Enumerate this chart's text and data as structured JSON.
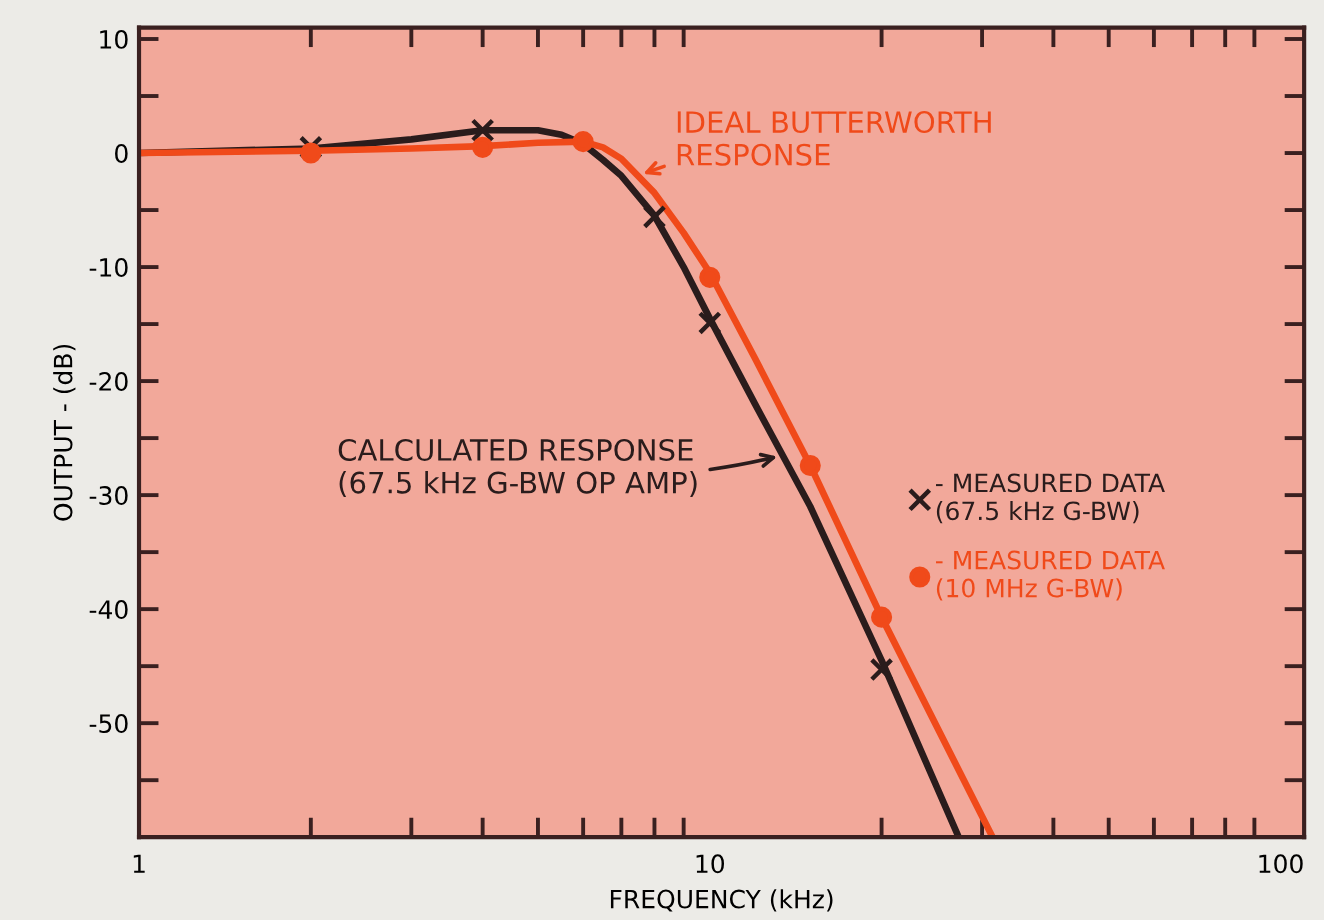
{
  "chart_data": {
    "type": "line",
    "xlabel": "FREQUENCY (kHz)",
    "ylabel": "OUTPUT - (dB)",
    "log": "x",
    "xlim": [
      1,
      110
    ],
    "xticks": [
      1,
      10,
      100
    ],
    "ylim": [
      -60,
      11
    ],
    "yticks": [
      {
        "value": -55,
        "label": null
      },
      -50,
      {
        "value": -45,
        "label": null
      },
      -40,
      {
        "value": -35,
        "label": null
      },
      -30,
      {
        "value": -25,
        "label": null
      },
      -20,
      {
        "value": -15,
        "label": null
      },
      -10,
      {
        "value": -5,
        "label": null
      },
      0,
      {
        "value": 5,
        "label": null
      },
      10
    ],
    "grid": false,
    "legend": "right",
    "series": [
      {
        "name": "CALCULATED RESPONSE\n(67.5 kHz G-BW OP AMP)",
        "color": "#2a1c1c",
        "marker": "none",
        "x": [
          1,
          2,
          3,
          4,
          5,
          5.5,
          6,
          6.5,
          7,
          8,
          9,
          10,
          12,
          15,
          20,
          27.3
        ],
        "values": [
          0,
          0.4,
          1.2,
          2,
          2,
          1.6,
          0.8,
          -0.6,
          -2,
          -5.5,
          -10,
          -14.5,
          -22,
          -31,
          -44.5,
          -60
        ]
      },
      {
        "name": "IDEAL BUTTERWORTH\nRESPONSE",
        "color": "#f04a1a",
        "marker": "none",
        "x": [
          1,
          2,
          3,
          4,
          5,
          6,
          6.5,
          7,
          8,
          9,
          10,
          12,
          15,
          20,
          31.3
        ],
        "values": [
          0,
          0.2,
          0.4,
          0.6,
          0.9,
          1,
          0.5,
          -0.5,
          -3.5,
          -7,
          -10.5,
          -18,
          -27.4,
          -40.7,
          -60
        ]
      },
      {
        "name": "- MEASURED DATA\n(67.5 kHz G-BW)",
        "type": "scatter",
        "marker": "cross",
        "color": "#2a1c1c",
        "x": [
          2,
          4,
          8,
          10,
          20
        ],
        "values": [
          0.5,
          2,
          -5.6,
          -14.9,
          -45.3
        ]
      },
      {
        "name": "- MEASURED DATA\n(10 MHz G-BW)",
        "type": "scatter",
        "marker": "circle",
        "color": "#f04a1a",
        "x": [
          2,
          4,
          6,
          10,
          15,
          20
        ],
        "values": [
          0,
          0.5,
          1,
          -10.9,
          -27.4,
          -40.7
        ]
      }
    ]
  }
}
